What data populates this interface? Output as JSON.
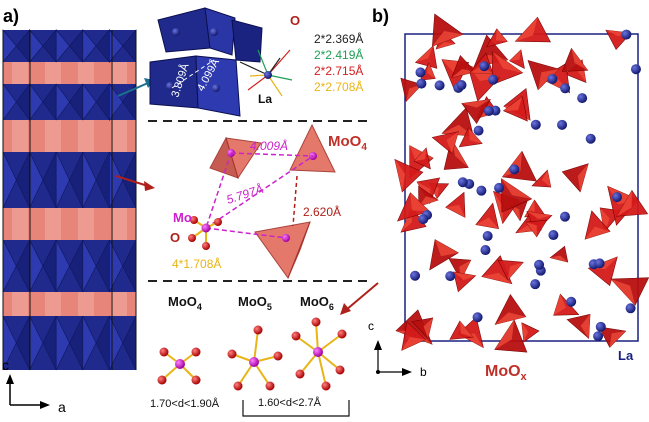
{
  "panel_a": {
    "label": "a)",
    "axes": {
      "vertical": "c",
      "horizontal": "a"
    },
    "top_cluster": {
      "atom_O": "O",
      "atom_La": "La",
      "dist_1": "3.809Å",
      "dist_2": "4.099Å",
      "bonds": [
        {
          "text": "2*2.369Å",
          "color": "#222222"
        },
        {
          "text": "2*2.419Å",
          "color": "#1e9e55"
        },
        {
          "text": "2*2.715Å",
          "color": "#d42020"
        },
        {
          "text": "2*2.708Å",
          "color": "#e8b416"
        }
      ]
    },
    "middle_cluster": {
      "title": "MoO",
      "title_sub": "4",
      "title_color": "#c0302a",
      "dist_a": "4.009Å",
      "dist_b": "5.797Å",
      "dist_c": "2.620Å",
      "atom_Mo": "Mo",
      "atom_O": "O",
      "mo_o_bond": "4*1.708Å",
      "mo_color": "#cc22cc",
      "o_color": "#d01010",
      "bond_color": "#e8b416"
    },
    "bottom_cluster": {
      "units": [
        {
          "text": "MoO",
          "sub": "4"
        },
        {
          "text": "MoO",
          "sub": "5"
        },
        {
          "text": "MoO",
          "sub": "6"
        }
      ],
      "range_1": "1.70<d<1.90Å",
      "range_2": "1.60<d<2.7Å"
    },
    "colors": {
      "polyhedra": "#1f2a8c",
      "polyhedra_light": "#3340b0",
      "layer": "#e8857a"
    }
  },
  "panel_b": {
    "label": "b)",
    "axes": {
      "vertical": "c",
      "horizontal": "b"
    },
    "label_mox": "MoO",
    "label_mox_sub": "x",
    "label_la": "La",
    "colors": {
      "tetrahedra": "#d41a1a",
      "La": "#1a1f8a",
      "frame": "#1a2080"
    }
  }
}
